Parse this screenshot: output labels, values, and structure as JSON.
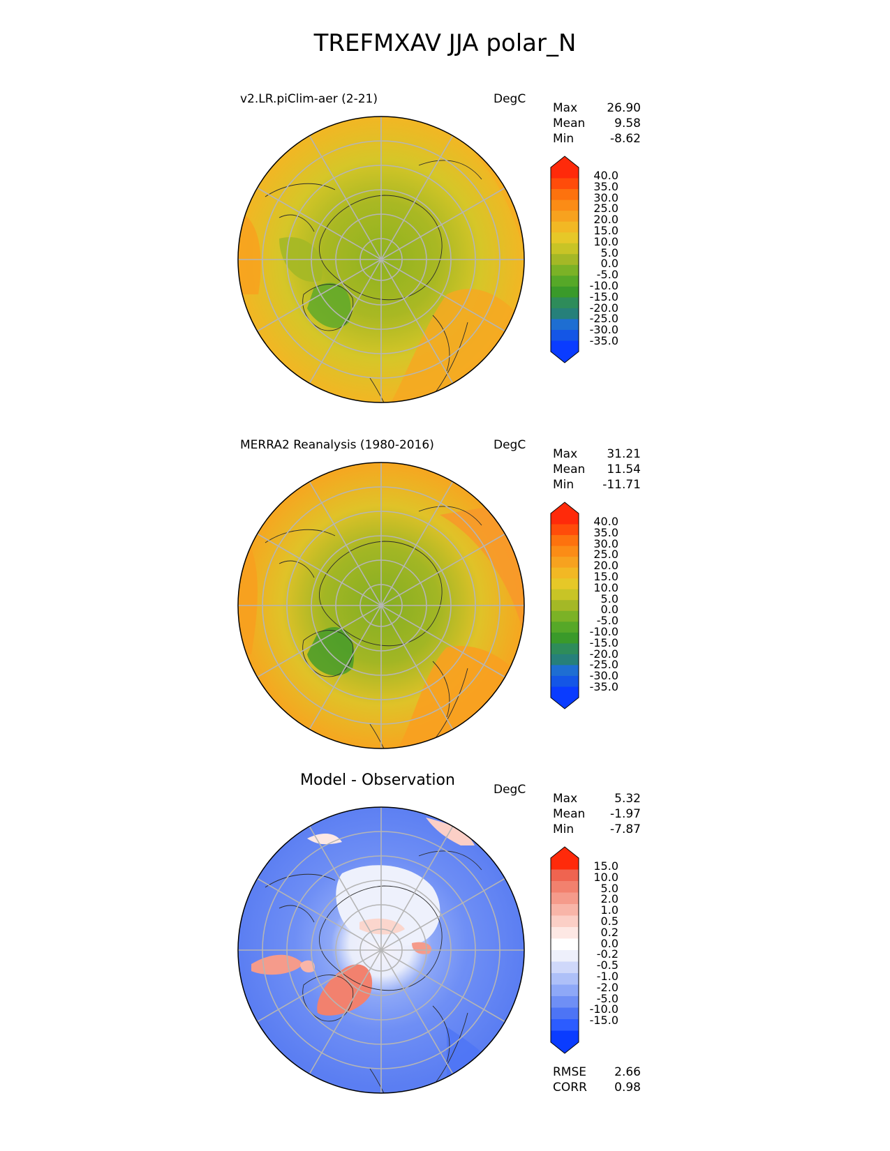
{
  "title": "TREFMXAV JJA polar_N",
  "panels": [
    {
      "id": "test",
      "subtitle": "v2.LR.piClim-aer (2-21)",
      "units": "DegC",
      "stats": {
        "max_label": "Max",
        "max": "26.90",
        "mean_label": "Mean",
        "mean": "9.58",
        "min_label": "Min",
        "min": "-8.62"
      },
      "colorbar_ticks": [
        "40.0",
        "35.0",
        "30.0",
        "25.0",
        "20.0",
        "15.0",
        "10.0",
        "5.0",
        "0.0",
        "-5.0",
        "-10.0",
        "-15.0",
        "-20.0",
        "-25.0",
        "-30.0",
        "-35.0"
      ]
    },
    {
      "id": "reference",
      "subtitle": "MERRA2 Reanalysis (1980-2016)",
      "units": "DegC",
      "stats": {
        "max_label": "Max",
        "max": "31.21",
        "mean_label": "Mean",
        "mean": "11.54",
        "min_label": "Min",
        "min": "-11.71"
      },
      "colorbar_ticks": [
        "40.0",
        "35.0",
        "30.0",
        "25.0",
        "20.0",
        "15.0",
        "10.0",
        "5.0",
        "0.0",
        "-5.0",
        "-10.0",
        "-15.0",
        "-20.0",
        "-25.0",
        "-30.0",
        "-35.0"
      ]
    },
    {
      "id": "difference",
      "subtitle": "Model - Observation",
      "units": "DegC",
      "stats": {
        "max_label": "Max",
        "max": "5.32",
        "mean_label": "Mean",
        "mean": "-1.97",
        "min_label": "Min",
        "min": "-7.87"
      },
      "colorbar_ticks": [
        "15.0",
        "10.0",
        "5.0",
        "2.0",
        "1.0",
        "0.5",
        "0.2",
        "0.0",
        "-0.2",
        "-0.5",
        "-1.0",
        "-2.0",
        "-5.0",
        "-10.0",
        "-15.0"
      ]
    }
  ],
  "metrics": {
    "rmse_label": "RMSE",
    "rmse": "2.66",
    "corr_label": "CORR",
    "corr": "0.98"
  },
  "colors": {
    "abs_colormap": [
      "#0a3cff",
      "#1456e6",
      "#1e6ed2",
      "#26807a",
      "#2e8c5a",
      "#3a9a2a",
      "#56a828",
      "#7bb226",
      "#a4b826",
      "#c8c426",
      "#e6c828",
      "#f2b824",
      "#f7a21f",
      "#fb8c16",
      "#fd720e",
      "#ff4c0a",
      "#ff2a0a"
    ],
    "diff_colormap": [
      "#0a3cff",
      "#2c5cff",
      "#4d74f5",
      "#6f8ff5",
      "#8ea8f7",
      "#aec0f8",
      "#cfd8fa",
      "#eef0fb",
      "#ffffff",
      "#fde8e4",
      "#fbcfc6",
      "#f8b5a8",
      "#f59b8b",
      "#f2816e",
      "#ef6450",
      "#ff2a0a"
    ]
  }
}
